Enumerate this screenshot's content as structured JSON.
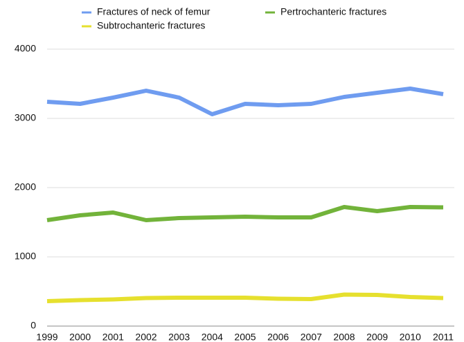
{
  "chart_data": {
    "type": "line",
    "categories": [
      "1999",
      "2000",
      "2001",
      "2002",
      "2003",
      "2004",
      "2005",
      "2006",
      "2007",
      "2008",
      "2009",
      "2010",
      "2011"
    ],
    "series": [
      {
        "name": "Fractures of neck of femur",
        "color": "#6f9cf0",
        "values": [
          3240,
          3210,
          3300,
          3400,
          3300,
          3060,
          3210,
          3190,
          3210,
          3310,
          3370,
          3430,
          3350
        ]
      },
      {
        "name": "Pertrochanteric fractures",
        "color": "#72b33a",
        "values": [
          1530,
          1600,
          1640,
          1530,
          1560,
          1570,
          1580,
          1570,
          1570,
          1720,
          1660,
          1720,
          1715
        ]
      },
      {
        "name": "Subtrochanteric fractures",
        "color": "#e6e02e",
        "values": [
          360,
          375,
          385,
          405,
          410,
          410,
          410,
          395,
          390,
          455,
          450,
          420,
          405
        ]
      }
    ],
    "ylim": [
      0,
      4000
    ],
    "yticks": [
      0,
      1000,
      2000,
      3000,
      4000
    ],
    "grid": true,
    "legend": "top"
  }
}
